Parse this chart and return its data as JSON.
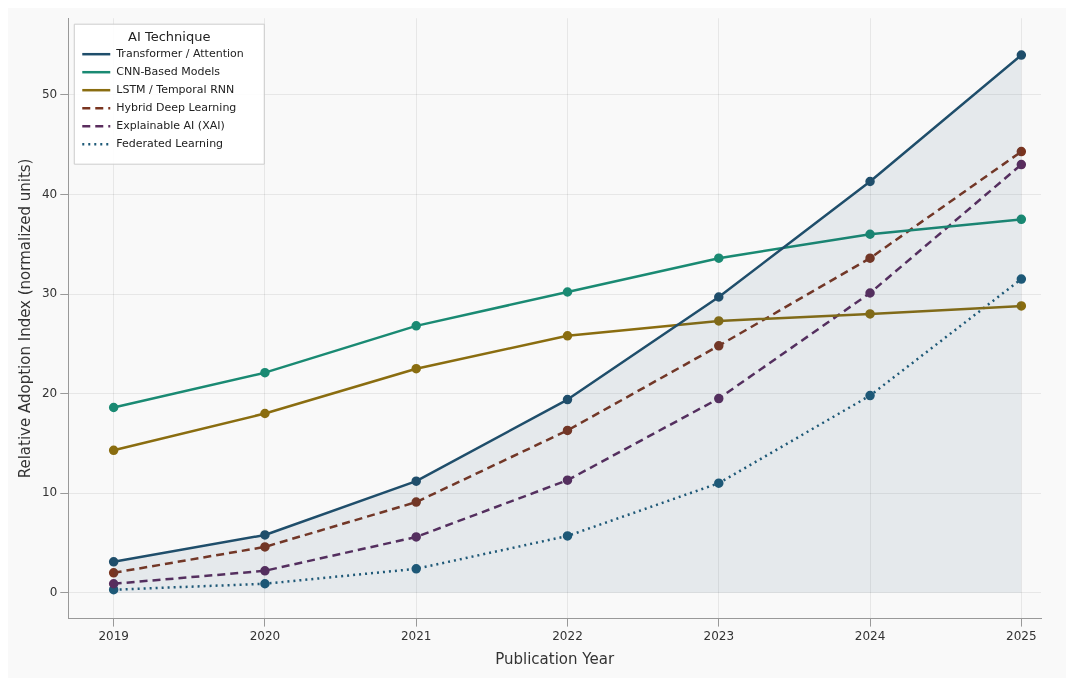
{
  "chart_data": {
    "type": "line",
    "xlabel": "Publication Year",
    "ylabel": "Relative Adoption Index (normalized units)",
    "legend_title": "AI Technique",
    "legend": "top left",
    "grid": true,
    "marker": "circle",
    "x": [
      2019,
      2020,
      2021,
      2022,
      2023,
      2024,
      2025
    ],
    "xlim": [
      2018.7,
      2025.13
    ],
    "xticks": [
      2019,
      2020,
      2021,
      2022,
      2023,
      2024,
      2025
    ],
    "ylim": [
      -2.6,
      57.7
    ],
    "yticks": [
      0,
      10,
      20,
      30,
      40,
      50
    ],
    "series": [
      {
        "name": "Transformer / Attention",
        "type": "area",
        "color": "#1f4e6b",
        "line_style": "solid",
        "values": [
          3.1,
          5.8,
          11.2,
          19.4,
          29.7,
          41.3,
          54.0
        ]
      },
      {
        "name": "CNN-Based Models",
        "color": "#1a8a73",
        "line_style": "solid",
        "values": [
          18.6,
          22.1,
          26.8,
          30.2,
          33.6,
          36.0,
          37.5
        ]
      },
      {
        "name": "LSTM / Temporal RNN",
        "color": "#8a6d10",
        "line_style": "solid",
        "values": [
          14.3,
          18.0,
          22.5,
          25.8,
          27.3,
          28.0,
          28.8
        ]
      },
      {
        "name": "Hybrid Deep Learning",
        "color": "#7a3520",
        "line_style": "dashed",
        "values": [
          2.0,
          4.6,
          9.1,
          16.3,
          24.8,
          33.6,
          44.3
        ]
      },
      {
        "name": "Explainable AI (XAI)",
        "color": "#5a2d5e",
        "line_style": "dashed",
        "values": [
          0.9,
          2.2,
          5.6,
          11.3,
          19.5,
          30.1,
          43.0
        ]
      },
      {
        "name": "Federated Learning",
        "color": "#1e5a78",
        "line_style": "dotted",
        "values": [
          0.3,
          0.9,
          2.4,
          5.7,
          11.0,
          19.8,
          31.5
        ]
      }
    ]
  }
}
